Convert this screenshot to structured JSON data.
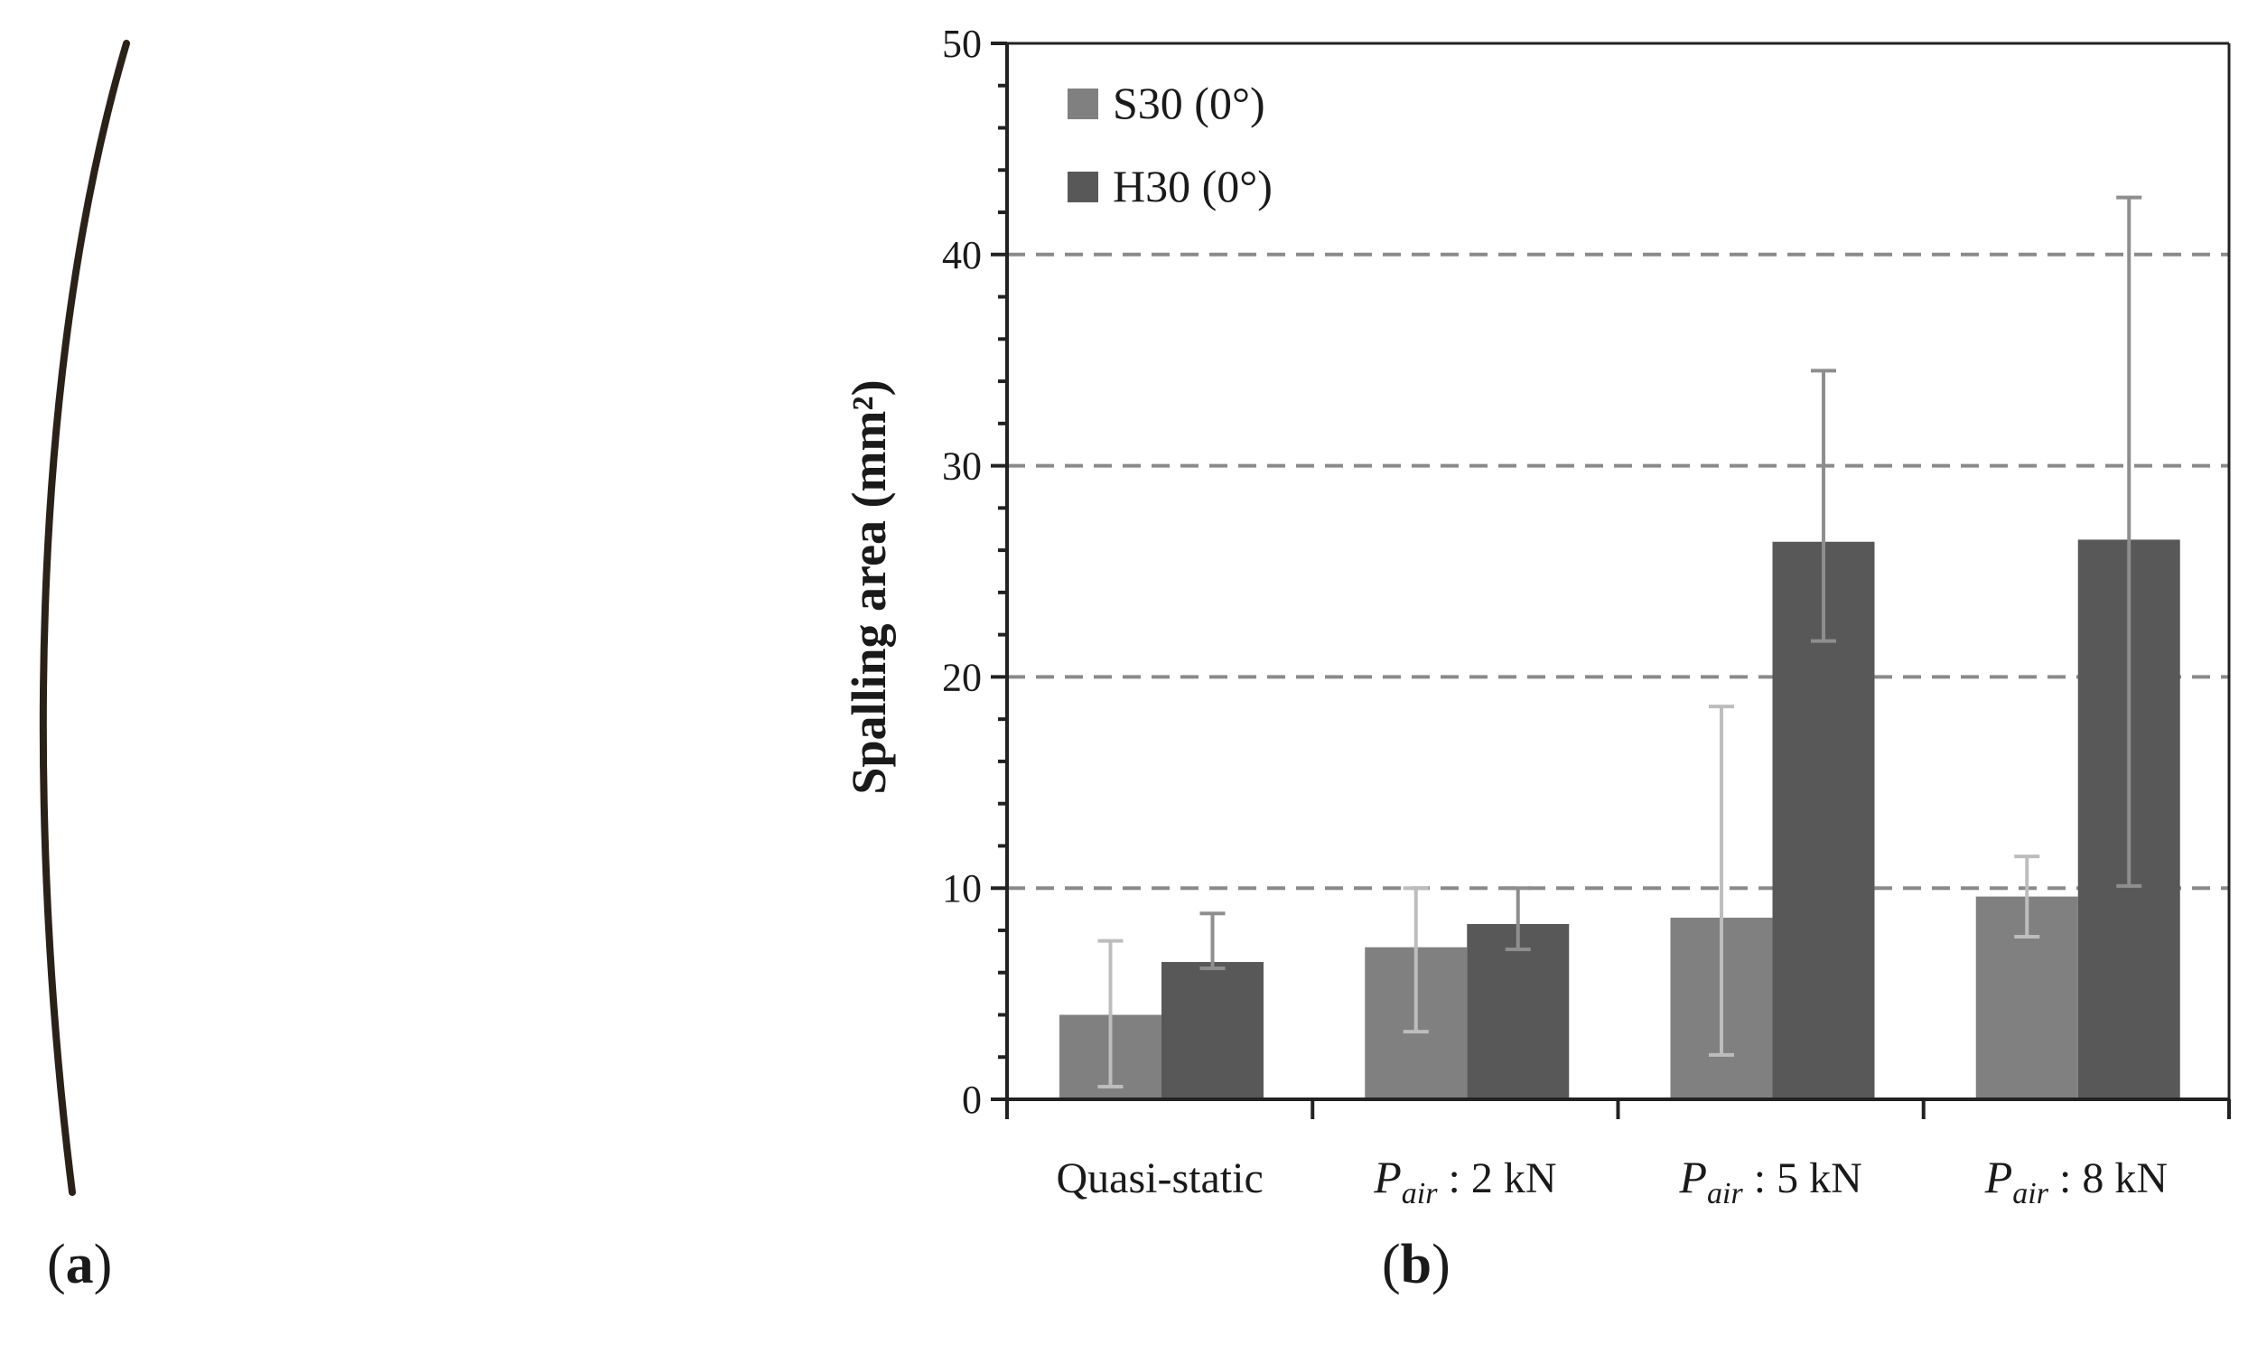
{
  "panels": {
    "a_label": "a",
    "b_label": "b"
  },
  "chart_data": {
    "type": "bar",
    "categories": [
      {
        "main": "Quasi-static",
        "italic": "",
        "sub": "",
        "suffix": ""
      },
      {
        "main": "",
        "italic": "P",
        "sub": "air",
        "suffix": " : 2 kN"
      },
      {
        "main": "",
        "italic": "P",
        "sub": "air",
        "suffix": " : 5 kN"
      },
      {
        "main": "",
        "italic": "P",
        "sub": "air",
        "suffix": " : 8 kN"
      }
    ],
    "series": [
      {
        "name": "S30 (0°)",
        "color": "#808080",
        "errorColor": "#bdbdbd",
        "values": [
          4.0,
          7.2,
          8.6,
          9.6
        ],
        "error_low": [
          0.6,
          3.2,
          2.1,
          7.7
        ],
        "error_high": [
          7.5,
          10.0,
          18.6,
          11.5
        ]
      },
      {
        "name": "H30 (0°)",
        "color": "#585858",
        "errorColor": "#8e8e8e",
        "values": [
          6.5,
          8.3,
          26.4,
          26.5
        ],
        "error_low": [
          6.2,
          7.1,
          21.7,
          10.1
        ],
        "error_high": [
          8.8,
          10.0,
          34.5,
          42.7
        ]
      }
    ],
    "ylabel": "Spalling area (mm²)",
    "ylim": [
      0,
      50
    ],
    "yticks": [
      0,
      10,
      20,
      30,
      40,
      50
    ],
    "ytick_labels": [
      "0",
      "10",
      "20",
      "30",
      "40",
      "50"
    ],
    "grid": "dashed horizontal at 10, 20, 30, 40",
    "legend_position": "top-left"
  }
}
